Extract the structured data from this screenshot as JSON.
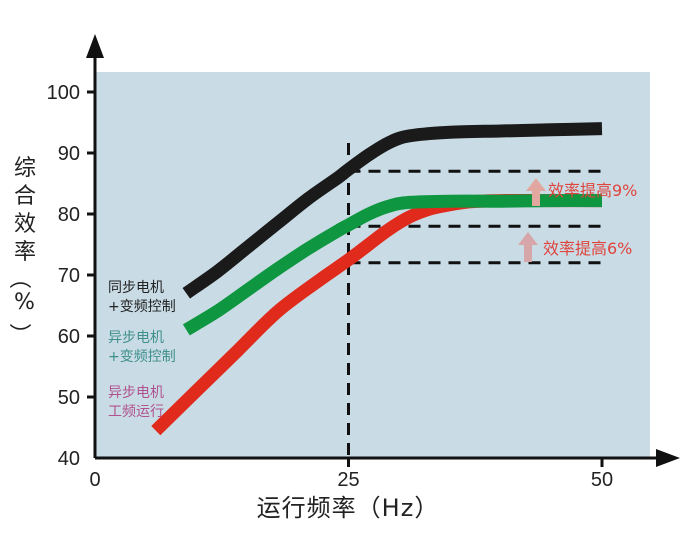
{
  "chart_data": {
    "type": "line",
    "xlabel": "运行频率（Hz）",
    "ylabel": "综合效率（%）",
    "xlim": [
      0,
      55
    ],
    "ylim": [
      40,
      104
    ],
    "x_ticks": [
      0,
      25,
      50
    ],
    "y_ticks": [
      40,
      50,
      60,
      70,
      80,
      90,
      100
    ],
    "background_color": "#c9dce6",
    "grid": false,
    "series": [
      {
        "name": "同步电机+变频控制",
        "name_lines": [
          "同步电机",
          "+变频控制"
        ],
        "label_color": "#222222",
        "color": "#1a1a1a",
        "x": [
          9,
          12,
          15,
          18,
          21,
          24,
          25,
          27,
          29,
          31,
          35,
          40,
          45,
          50
        ],
        "y": [
          67,
          70.5,
          74.5,
          78.5,
          82.5,
          86,
          87.3,
          89.7,
          91.7,
          92.8,
          93.4,
          93.6,
          93.8,
          94
        ]
      },
      {
        "name": "异步电机+变频控制",
        "name_lines": [
          "异步电机",
          "+变频控制"
        ],
        "label_color": "#3f8f8a",
        "color": "#0f9640",
        "x": [
          9,
          12,
          15,
          18,
          21,
          24,
          25,
          27,
          29,
          31,
          35,
          40,
          45,
          50
        ],
        "y": [
          61,
          64,
          67.5,
          71,
          74.3,
          77.3,
          78.2,
          80,
          81.3,
          81.9,
          82.1,
          82.1,
          82.2,
          82.2
        ]
      },
      {
        "name": "异步电机工频运行",
        "name_lines": [
          "异步电机",
          "工频运行"
        ],
        "label_color": "#b0528e",
        "color": "#e02a1c",
        "x": [
          6,
          10,
          14,
          18,
          22,
          25,
          27,
          29,
          31,
          33,
          35,
          37,
          40,
          45,
          50
        ],
        "y": [
          44.5,
          51,
          57.5,
          64,
          69,
          72.5,
          75,
          77.5,
          79.5,
          80.8,
          81.5,
          82,
          82.2,
          82.2,
          82.2
        ]
      }
    ],
    "reference_lines": {
      "vertical_x": 25,
      "horizontal_y": [
        87,
        78,
        72
      ],
      "style": "dashed"
    },
    "annotations": [
      {
        "text": "效率提高9%",
        "arrow_color": "#e2a8a0"
      },
      {
        "text": "效率提高6%",
        "arrow_color": "#d7a6a8"
      }
    ]
  }
}
